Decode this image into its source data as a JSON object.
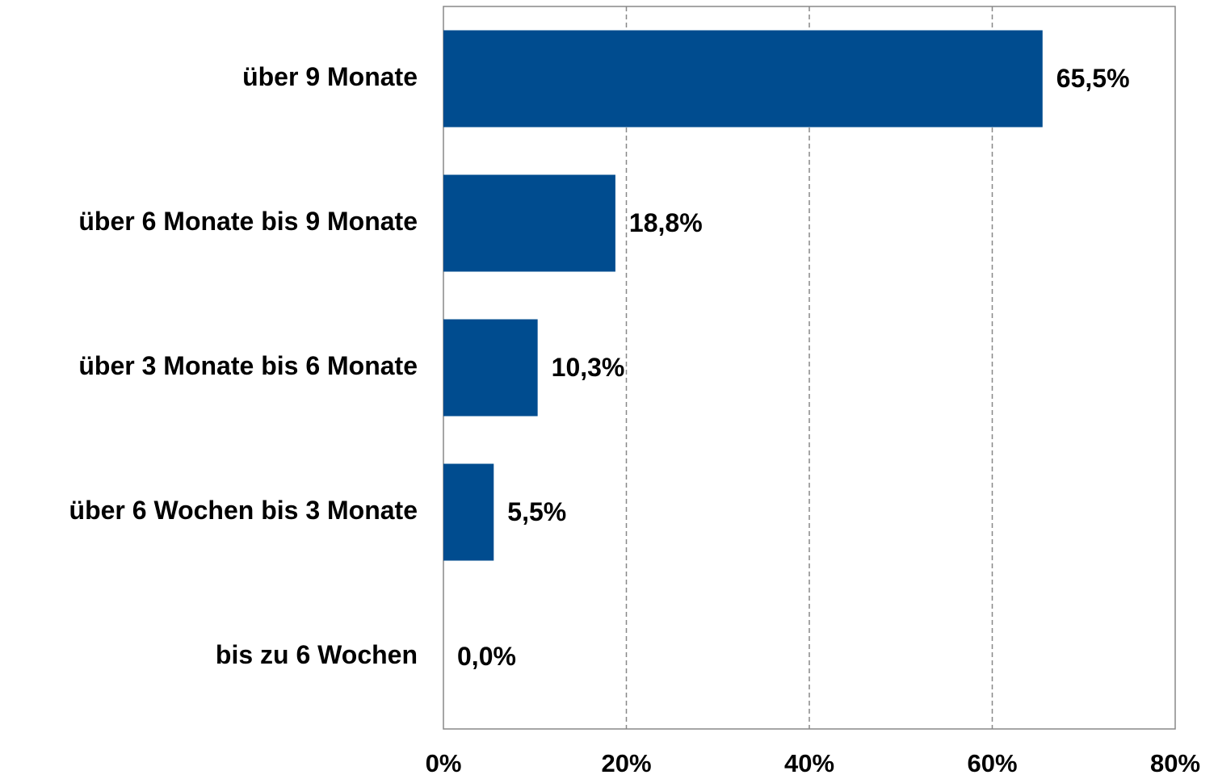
{
  "chart_data": {
    "type": "bar",
    "orientation": "horizontal",
    "categories": [
      "über 9 Monate",
      "über 6 Monate bis 9 Monate",
      "über 3 Monate bis 6 Monate",
      "über 6 Wochen bis 3 Monate",
      "bis zu 6 Wochen"
    ],
    "values": [
      65.5,
      18.8,
      10.3,
      5.5,
      0.0
    ],
    "value_labels": [
      "65,5%",
      "18,8%",
      "10,3%",
      "5,5%",
      "0,0%"
    ],
    "color": "#004c8f",
    "xlim": [
      0,
      80
    ],
    "xticks": [
      {
        "value": 0,
        "label": "0%"
      },
      {
        "value": 20,
        "label": "20%"
      },
      {
        "value": 40,
        "label": "40%"
      },
      {
        "value": 60,
        "label": "60%"
      },
      {
        "value": 80,
        "label": "80%"
      }
    ],
    "grid": true
  }
}
